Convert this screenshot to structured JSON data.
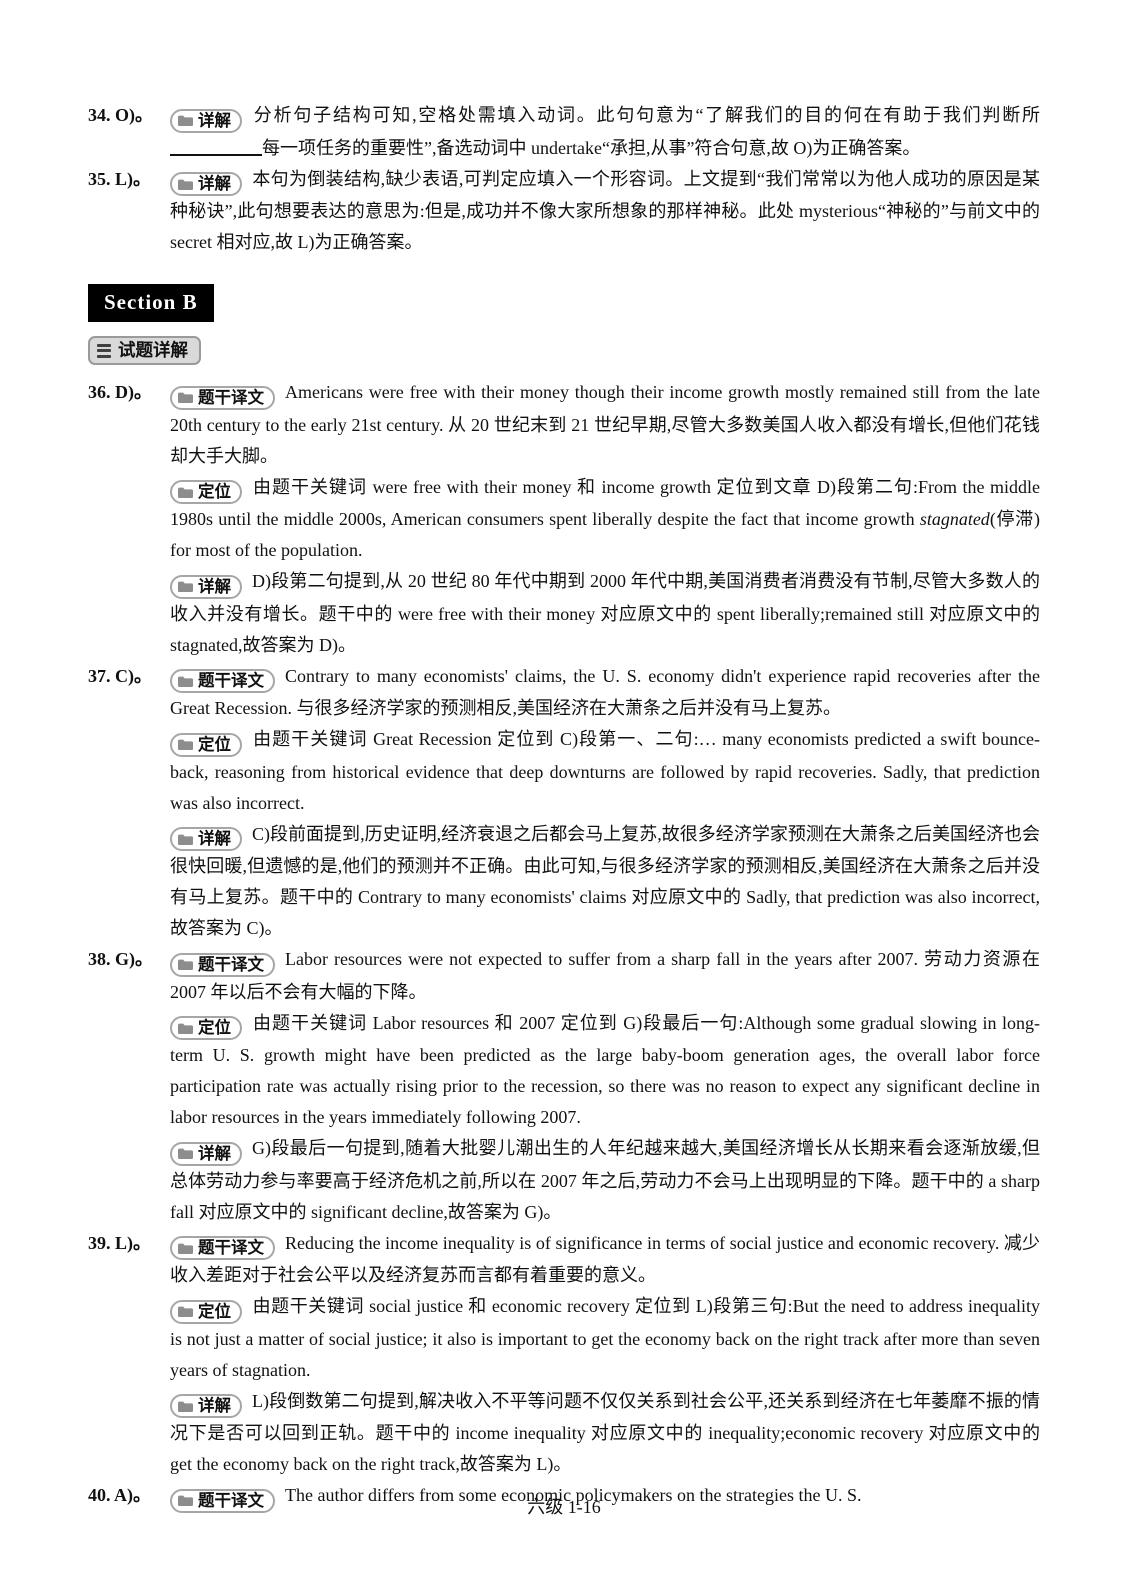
{
  "colors": {
    "section_header_bg": "#000000",
    "section_header_text": "#ffffff",
    "badge_border": "#a6a6a6",
    "badge_icon_gray": "#8d8d8d",
    "subsection_bg": "#d9d9d9",
    "text": "#111111"
  },
  "section_b": {
    "title": "Section B"
  },
  "subsection": {
    "label": "试题详解",
    "icon": "list-icon"
  },
  "footer": {
    "text": "六级 1-16"
  },
  "icons": {
    "badge": "folder-icon",
    "subsection": "list-icon"
  },
  "pre_items": [
    {
      "number": "34. O)。",
      "blocks": [
        {
          "badge_label": "详解",
          "badge_name": "detail-badge",
          "parts": [
            {
              "text": "分析句子结构可知,空格处需填入动词。此句句意为“了解我们的目的何在有助于我们判断所"
            },
            {
              "blank": true
            },
            {
              "text": "每一项任务的重要性”,备选动词中 undertake“承担,从事”符合句意,故 O)为正确答案。"
            }
          ]
        }
      ]
    },
    {
      "number": "35. L)。",
      "blocks": [
        {
          "badge_label": "详解",
          "badge_name": "detail-badge",
          "parts": [
            {
              "text": "本句为倒装结构,缺少表语,可判定应填入一个形容词。上文提到“我们常常以为他人成功的原因是某种秘诀”,此句想要表达的意思为:但是,成功并不像大家所想象的那样神秘。此处 mysterious“神秘的”与前文中的 secret 相对应,故 L)为正确答案。"
            }
          ]
        }
      ]
    }
  ],
  "items": [
    {
      "number": "36. D)。",
      "blocks": [
        {
          "badge_label": "题干译文",
          "badge_name": "translation-badge",
          "parts": [
            {
              "text": "Americans were free with their money though their income growth mostly remained still from the late 20th century to the early 21st century. 从 20 世纪末到 21 世纪早期,尽管大多数美国人收入都没有增长,但他们花钱却大手大脚。"
            }
          ]
        },
        {
          "badge_label": "定位",
          "badge_name": "locate-badge",
          "parts": [
            {
              "text": "由题干关键词 were free with their money 和 income growth 定位到文章 D)段第二句:From the middle 1980s until the middle 2000s, American consumers spent liberally despite the fact that income growth "
            },
            {
              "italic": "stagnated"
            },
            {
              "text": "(停滞) for most of the population."
            }
          ]
        },
        {
          "badge_label": "详解",
          "badge_name": "detail-badge",
          "parts": [
            {
              "text": "D)段第二句提到,从 20 世纪 80 年代中期到 2000 年代中期,美国消费者消费没有节制,尽管大多数人的收入并没有增长。题干中的 were free with their money 对应原文中的 spent liberally;remained still 对应原文中的 stagnated,故答案为 D)。"
            }
          ]
        }
      ]
    },
    {
      "number": "37. C)。",
      "blocks": [
        {
          "badge_label": "题干译文",
          "badge_name": "translation-badge",
          "parts": [
            {
              "text": "Contrary to many economists' claims, the U. S. economy didn't experience rapid recoveries after the Great Recession. 与很多经济学家的预测相反,美国经济在大萧条之后并没有马上复苏。"
            }
          ]
        },
        {
          "badge_label": "定位",
          "badge_name": "locate-badge",
          "parts": [
            {
              "text": "由题干关键词 Great Recession 定位到 C)段第一、二句:… many economists predicted a swift bounce-back, reasoning from historical evidence that deep downturns are followed by rapid recoveries. Sadly, that prediction was also incorrect."
            }
          ]
        },
        {
          "badge_label": "详解",
          "badge_name": "detail-badge",
          "parts": [
            {
              "text": "C)段前面提到,历史证明,经济衰退之后都会马上复苏,故很多经济学家预测在大萧条之后美国经济也会很快回暖,但遗憾的是,他们的预测并不正确。由此可知,与很多经济学家的预测相反,美国经济在大萧条之后并没有马上复苏。题干中的 Contrary to many economists' claims 对应原文中的 Sadly, that prediction was also incorrect,故答案为 C)。"
            }
          ]
        }
      ]
    },
    {
      "number": "38. G)。",
      "blocks": [
        {
          "badge_label": "题干译文",
          "badge_name": "translation-badge",
          "parts": [
            {
              "text": "Labor resources were not expected to suffer from a sharp fall in the years after 2007. 劳动力资源在 2007 年以后不会有大幅的下降。"
            }
          ]
        },
        {
          "badge_label": "定位",
          "badge_name": "locate-badge",
          "parts": [
            {
              "text": "由题干关键词 Labor resources 和 2007 定位到 G)段最后一句:Although some gradual slowing in long-term U. S. growth might have been predicted as the large baby-boom generation ages, the overall labor force participation rate was actually rising prior to the recession, so there was no reason to expect any significant decline in labor resources in the years immediately following 2007."
            }
          ]
        },
        {
          "badge_label": "详解",
          "badge_name": "detail-badge",
          "parts": [
            {
              "text": "G)段最后一句提到,随着大批婴儿潮出生的人年纪越来越大,美国经济增长从长期来看会逐渐放缓,但总体劳动力参与率要高于经济危机之前,所以在 2007 年之后,劳动力不会马上出现明显的下降。题干中的 a sharp fall 对应原文中的 significant decline,故答案为 G)。"
            }
          ]
        }
      ]
    },
    {
      "number": "39. L)。",
      "blocks": [
        {
          "badge_label": "题干译文",
          "badge_name": "translation-badge",
          "parts": [
            {
              "text": "Reducing the income inequality is of significance in terms of social justice and economic recovery. 减少收入差距对于社会公平以及经济复苏而言都有着重要的意义。"
            }
          ]
        },
        {
          "badge_label": "定位",
          "badge_name": "locate-badge",
          "parts": [
            {
              "text": "由题干关键词 social justice 和 economic recovery 定位到 L)段第三句:But the need to address inequality is not just a matter of social justice; it also is important to get the economy back on the right track after more than seven years of stagnation."
            }
          ]
        },
        {
          "badge_label": "详解",
          "badge_name": "detail-badge",
          "parts": [
            {
              "text": "L)段倒数第二句提到,解决收入不平等问题不仅仅关系到社会公平,还关系到经济在七年萎靡不振的情况下是否可以回到正轨。题干中的 income inequality 对应原文中的 inequality;economic recovery 对应原文中的 get the economy back on the right track,故答案为 L)。"
            }
          ]
        }
      ]
    },
    {
      "number": "40. A)。",
      "blocks": [
        {
          "badge_label": "题干译文",
          "badge_name": "translation-badge",
          "parts": [
            {
              "text": "The author differs from some economic policymakers on the strategies the U. S."
            }
          ]
        }
      ]
    }
  ]
}
